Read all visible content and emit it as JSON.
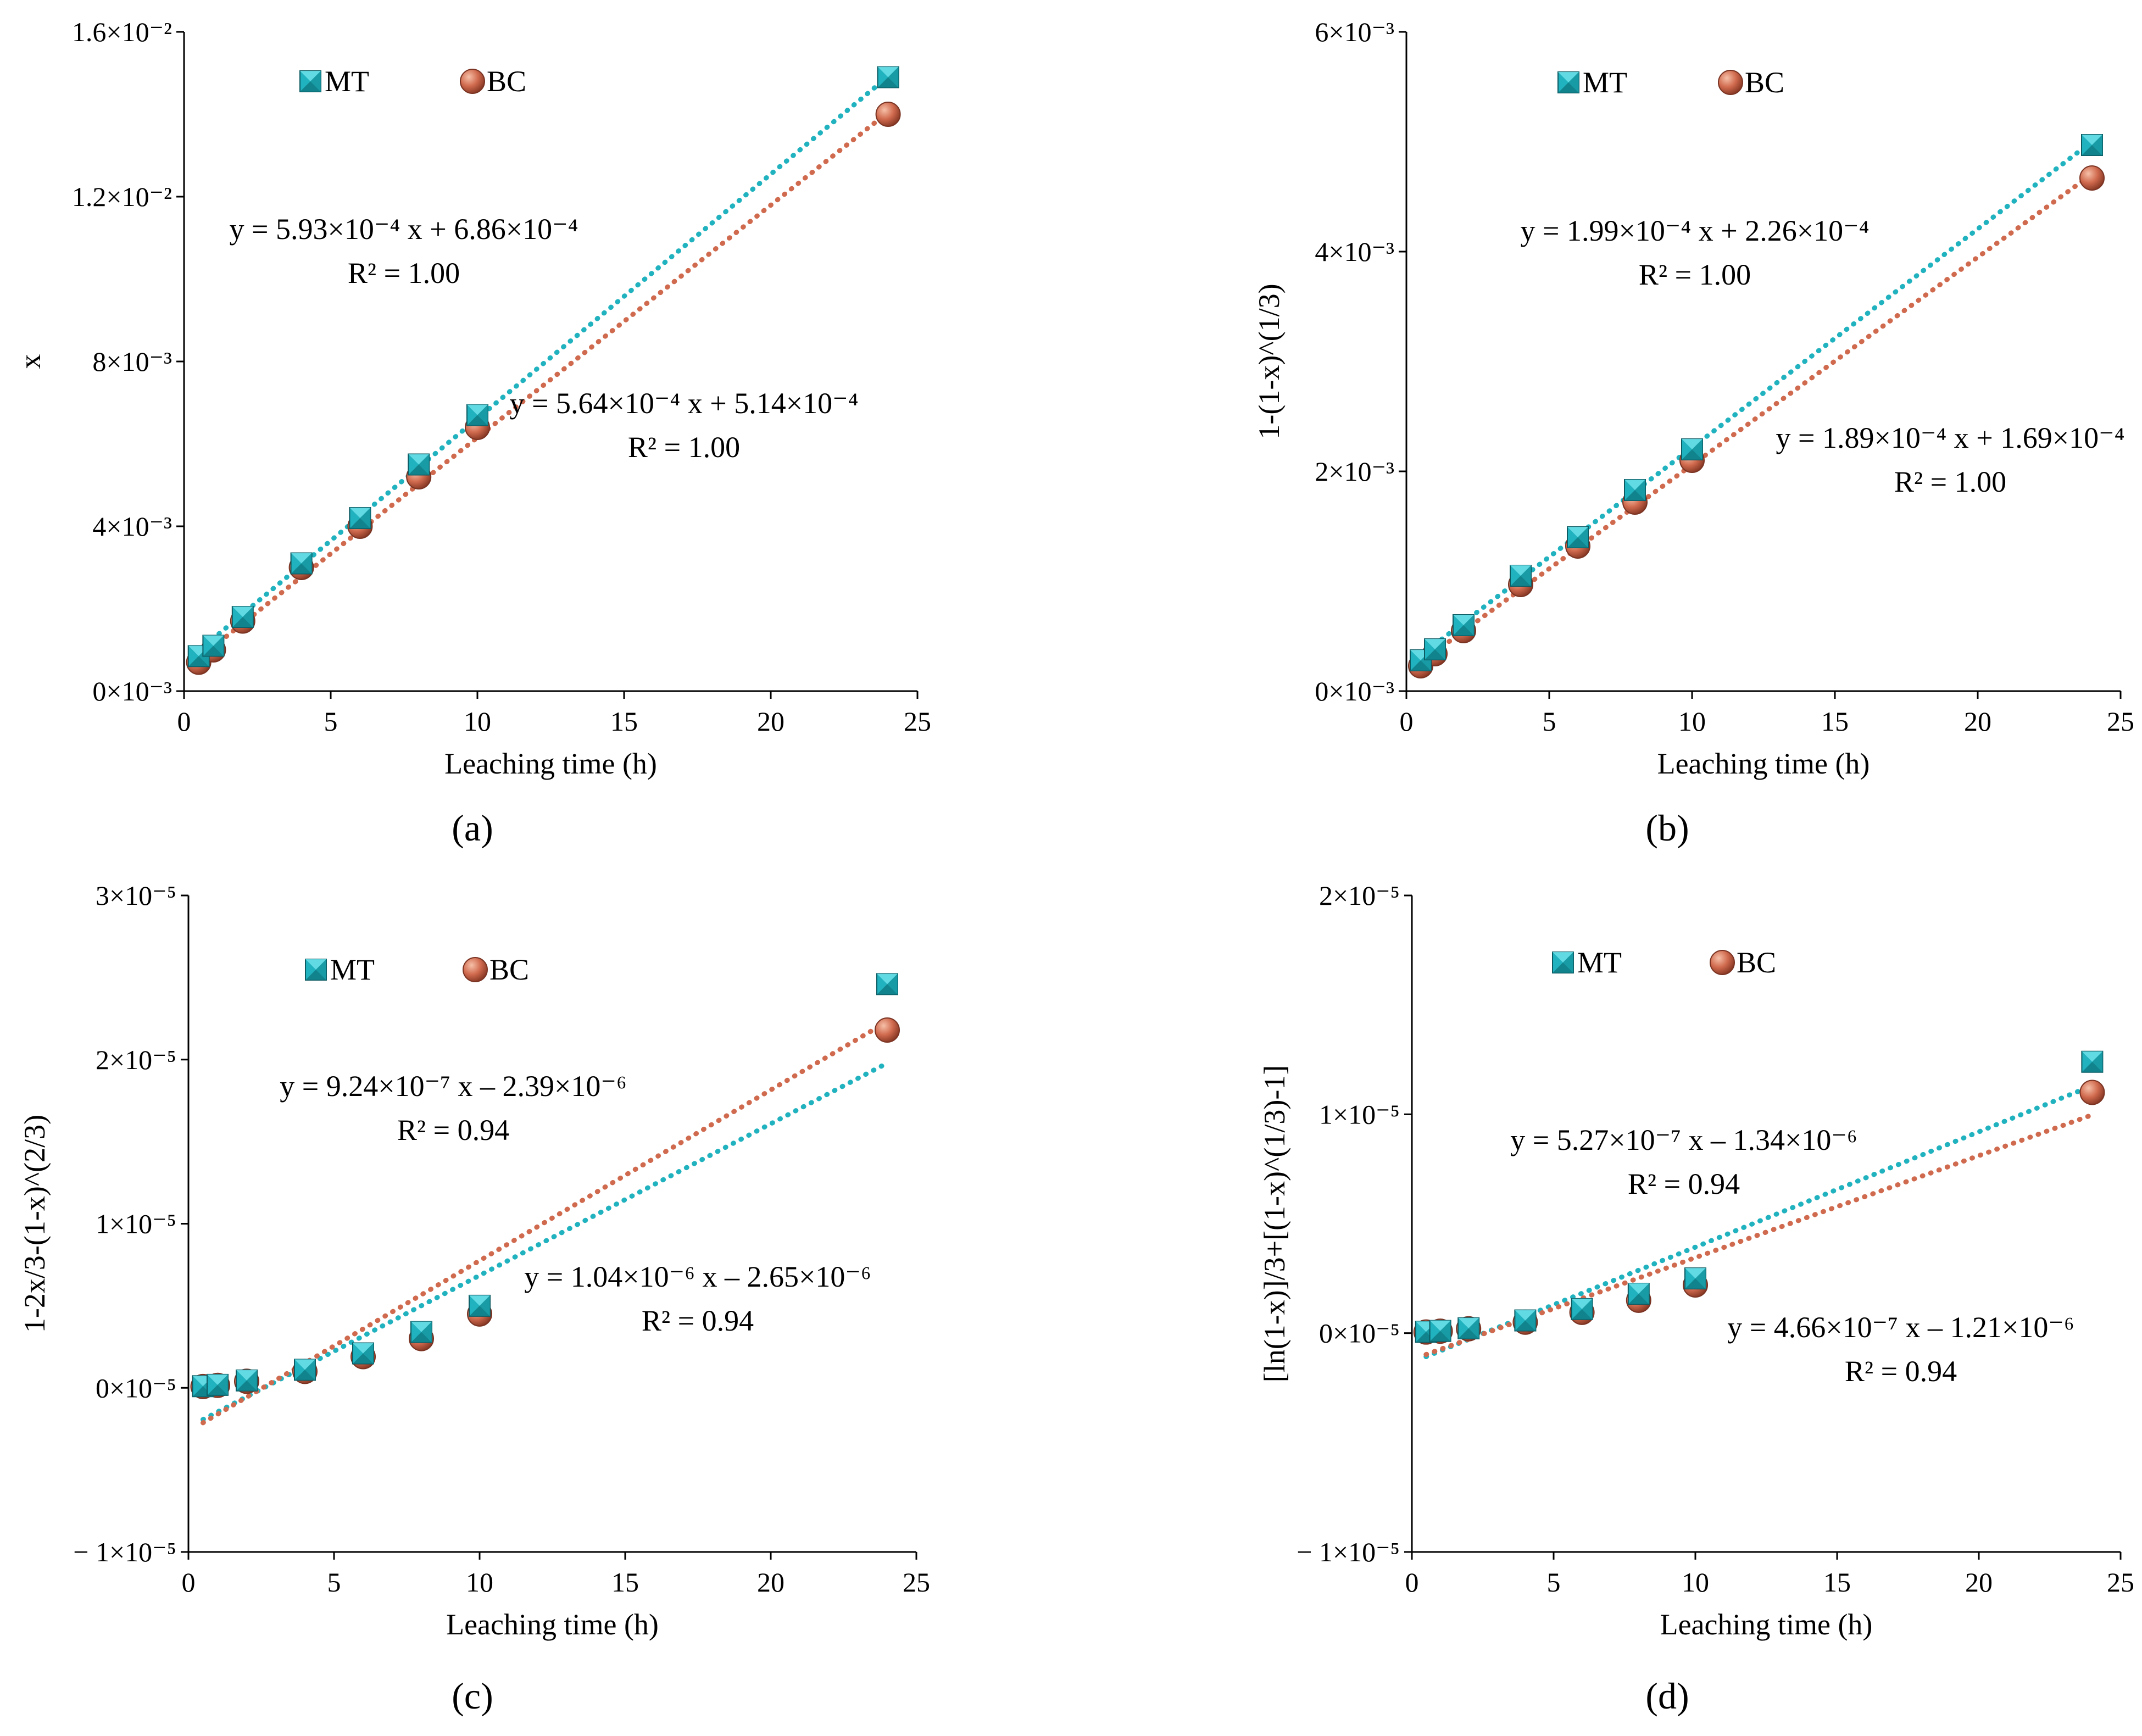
{
  "chart_data": [
    {
      "type": "scatter",
      "panel_label": "(a)",
      "xlabel": "Leaching time (h)",
      "ylabel": "x",
      "xlim": [
        0,
        25
      ],
      "ylim": [
        0,
        0.016
      ],
      "x_ticks": [
        0,
        5,
        10,
        15,
        20,
        25
      ],
      "y_ticks": [
        {
          "value": 0,
          "label": "0×10⁻³"
        },
        {
          "value": 0.004,
          "label": "4×10⁻³"
        },
        {
          "value": 0.008,
          "label": "8×10⁻³"
        },
        {
          "value": 0.012,
          "label": "1.2×10⁻²"
        },
        {
          "value": 0.016,
          "label": "1.6×10⁻²"
        }
      ],
      "legend": {
        "placement": "top-left",
        "entries": [
          "MT",
          "BC"
        ]
      },
      "series": [
        {
          "name": "MT",
          "marker": "square",
          "color": "#20b2be",
          "x": [
            0.5,
            1,
            2,
            4,
            6,
            8,
            10,
            24
          ],
          "y": [
            0.00085,
            0.0011,
            0.0018,
            0.0031,
            0.0042,
            0.0055,
            0.0067,
            0.0149
          ],
          "fit": {
            "slope": 0.000593,
            "intercept": 0.000686,
            "x_range": [
              0.5,
              24
            ]
          },
          "equation": "y = 5.93×10⁻⁴ x + 6.86×10⁻⁴",
          "r2": "R² = 1.00"
        },
        {
          "name": "BC",
          "marker": "circle",
          "color": "#d06a4e",
          "x": [
            0.5,
            1,
            2,
            4,
            6,
            8,
            10,
            24
          ],
          "y": [
            0.0007,
            0.001,
            0.0017,
            0.003,
            0.004,
            0.0052,
            0.0064,
            0.014
          ],
          "fit": {
            "slope": 0.000564,
            "intercept": 0.000514,
            "x_range": [
              0.5,
              24
            ]
          },
          "equation": "y = 5.64×10⁻⁴ x + 5.14×10⁻⁴",
          "r2": "R² = 1.00"
        }
      ]
    },
    {
      "type": "scatter",
      "panel_label": "(b)",
      "xlabel": "Leaching time (h)",
      "ylabel": "1-(1-x)^(1/3)",
      "xlim": [
        0,
        25
      ],
      "ylim": [
        0,
        0.006
      ],
      "x_ticks": [
        0,
        5,
        10,
        15,
        20,
        25
      ],
      "y_ticks": [
        {
          "value": 0,
          "label": "0×10⁻³"
        },
        {
          "value": 0.002,
          "label": "2×10⁻³"
        },
        {
          "value": 0.004,
          "label": "4×10⁻³"
        },
        {
          "value": 0.006,
          "label": "6×10⁻³"
        }
      ],
      "legend": {
        "placement": "top-left",
        "entries": [
          "MT",
          "BC"
        ]
      },
      "series": [
        {
          "name": "MT",
          "marker": "square",
          "color": "#20b2be",
          "x": [
            0.5,
            1,
            2,
            4,
            6,
            8,
            10,
            24
          ],
          "y": [
            0.00028,
            0.00038,
            0.0006,
            0.00105,
            0.0014,
            0.00183,
            0.0022,
            0.00497
          ],
          "fit": {
            "slope": 0.000199,
            "intercept": 0.000226,
            "x_range": [
              0.5,
              24
            ]
          },
          "equation": "y = 1.99×10⁻⁴ x + 2.26×10⁻⁴",
          "r2": "R² = 1.00"
        },
        {
          "name": "BC",
          "marker": "circle",
          "color": "#d06a4e",
          "x": [
            0.5,
            1,
            2,
            4,
            6,
            8,
            10,
            24
          ],
          "y": [
            0.00023,
            0.00034,
            0.00055,
            0.00097,
            0.00132,
            0.00172,
            0.0021,
            0.00467
          ],
          "fit": {
            "slope": 0.000189,
            "intercept": 0.000169,
            "x_range": [
              0.5,
              24
            ]
          },
          "equation": "y = 1.89×10⁻⁴ x + 1.69×10⁻⁴",
          "r2": "R² = 1.00"
        }
      ]
    },
    {
      "type": "scatter",
      "panel_label": "(c)",
      "xlabel": "Leaching time (h)",
      "ylabel": "1-2x/3-(1-x)^(2/3)",
      "xlim": [
        0,
        25
      ],
      "ylim": [
        -1e-05,
        3e-05
      ],
      "x_ticks": [
        0,
        5,
        10,
        15,
        20,
        25
      ],
      "y_ticks": [
        {
          "value": -1e-05,
          "label": "− 1×10⁻⁵"
        },
        {
          "value": 0,
          "label": "0×10⁻⁵"
        },
        {
          "value": 1e-05,
          "label": "1×10⁻⁵"
        },
        {
          "value": 2e-05,
          "label": "2×10⁻⁵"
        },
        {
          "value": 3e-05,
          "label": "3×10⁻⁵"
        }
      ],
      "legend": {
        "placement": "top-left",
        "entries": [
          "MT",
          "BC"
        ]
      },
      "series": [
        {
          "name": "MT",
          "marker": "square",
          "color": "#20b2be",
          "x": [
            0.5,
            1,
            2,
            4,
            6,
            8,
            10,
            24
          ],
          "y": [
            1e-07,
            1.8e-07,
            4.5e-07,
            1.1e-06,
            2.1e-06,
            3.4e-06,
            5e-06,
            2.46e-05
          ],
          "fit": {
            "slope": 9.24e-07,
            "intercept": -2.39e-06,
            "x_range": [
              0.5,
              24
            ]
          },
          "equation": "y = 9.24×10⁻⁷ x – 2.39×10⁻⁶",
          "r2": "R² = 0.94"
        },
        {
          "name": "BC",
          "marker": "circle",
          "color": "#d06a4e",
          "x": [
            0.5,
            1,
            2,
            4,
            6,
            8,
            10,
            24
          ],
          "y": [
            8e-08,
            1.5e-07,
            4e-07,
            1e-06,
            1.9e-06,
            3e-06,
            4.5e-06,
            2.18e-05
          ],
          "fit": {
            "slope": 1.04e-06,
            "intercept": -2.65e-06,
            "x_range": [
              0.5,
              24
            ]
          },
          "equation": "y = 1.04×10⁻⁶ x – 2.65×10⁻⁶",
          "r2": "R² = 0.94"
        }
      ]
    },
    {
      "type": "scatter",
      "panel_label": "(d)",
      "xlabel": "Leaching time (h)",
      "ylabel": "[ln(1-x)]/3+[(1-x)^(1/3)-1]",
      "xlim": [
        0,
        25
      ],
      "ylim": [
        -1e-05,
        2e-05
      ],
      "x_ticks": [
        0,
        5,
        10,
        15,
        20,
        25
      ],
      "y_ticks": [
        {
          "value": -1e-05,
          "label": "− 1×10⁻⁵"
        },
        {
          "value": 0,
          "label": "0×10⁻⁵"
        },
        {
          "value": 1e-05,
          "label": "1×10⁻⁵"
        },
        {
          "value": 2e-05,
          "label": "2×10⁻⁵"
        }
      ],
      "legend": {
        "placement": "top-left",
        "entries": [
          "MT",
          "BC"
        ]
      },
      "series": [
        {
          "name": "MT",
          "marker": "square",
          "color": "#20b2be",
          "x": [
            0.5,
            1,
            2,
            4,
            6,
            8,
            10,
            24
          ],
          "y": [
            6e-08,
            1e-07,
            2.2e-07,
            5.8e-07,
            1.1e-06,
            1.8e-06,
            2.5e-06,
            1.24e-05
          ],
          "fit": {
            "slope": 5.27e-07,
            "intercept": -1.34e-06,
            "x_range": [
              0.5,
              24
            ]
          },
          "equation": "y = 5.27×10⁻⁷ x – 1.34×10⁻⁶",
          "r2": "R² = 0.94"
        },
        {
          "name": "BC",
          "marker": "circle",
          "color": "#d06a4e",
          "x": [
            0.5,
            1,
            2,
            4,
            6,
            8,
            10,
            24
          ],
          "y": [
            5e-08,
            9e-08,
            2e-07,
            5e-07,
            9.5e-07,
            1.5e-06,
            2.2e-06,
            1.1e-05
          ],
          "fit": {
            "slope": 4.66e-07,
            "intercept": -1.21e-06,
            "x_range": [
              0.5,
              24
            ]
          },
          "equation": "y = 4.66×10⁻⁷ x – 1.21×10⁻⁶",
          "r2": "R² = 0.94"
        }
      ]
    }
  ]
}
